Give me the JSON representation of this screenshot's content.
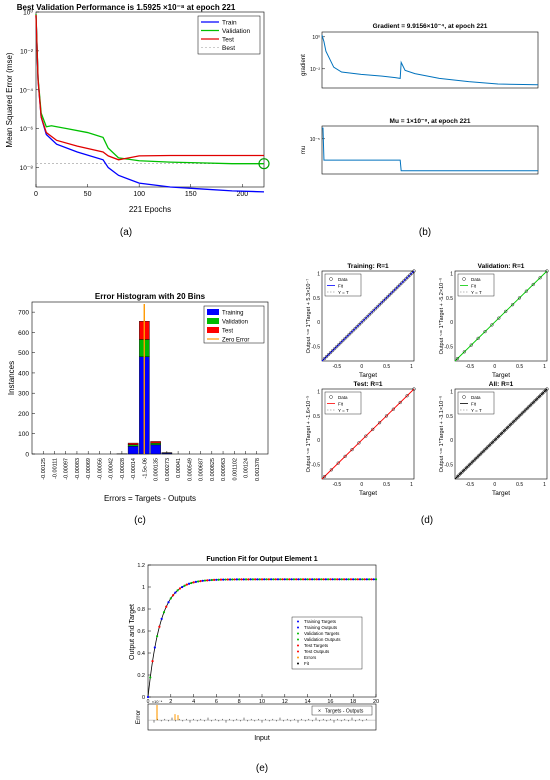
{
  "captions": {
    "a": "(a)",
    "b": "(b)",
    "c": "(c)",
    "d": "(d)",
    "e": "(e)"
  },
  "chart_data": [
    {
      "id": "a",
      "type": "line",
      "title": "Best Validation Performance is 1.5925 ×10⁻⁸ at epoch 221",
      "xlabel": "221 Epochs",
      "ylabel": "Mean Squared Error  (mse)",
      "xlim": [
        0,
        221
      ],
      "ylim_exp": [
        -9,
        0
      ],
      "y_scale": "log",
      "xticks": [
        0,
        50,
        100,
        150,
        200
      ],
      "ytick_labels": [
        "10⁰",
        "10⁻²",
        "10⁻⁴",
        "10⁻⁶",
        "10⁻⁸"
      ],
      "ytick_exps": [
        0,
        -2,
        -4,
        -6,
        -8
      ],
      "legend": [
        "Train",
        "Validation",
        "Test",
        "Best"
      ],
      "colors": {
        "Train": "#0000ff",
        "Validation": "#00c000",
        "Test": "#e00000",
        "Best": "#777777"
      },
      "series": [
        {
          "name": "Train",
          "x": [
            0,
            2,
            5,
            10,
            20,
            40,
            65,
            70,
            80,
            100,
            130,
            160,
            190,
            221
          ],
          "log10y": [
            -0.2,
            -3.5,
            -5.4,
            -6.3,
            -6.8,
            -7.2,
            -7.6,
            -8.0,
            -8.4,
            -8.8,
            -9.0,
            -9.1,
            -9.2,
            -9.25
          ]
        },
        {
          "name": "Validation",
          "x": [
            0,
            2,
            5,
            10,
            15,
            30,
            50,
            65,
            70,
            80,
            100,
            130,
            160,
            190,
            221
          ],
          "log10y": [
            -0.1,
            -3.4,
            -5.2,
            -5.9,
            -5.85,
            -6.0,
            -6.2,
            -6.45,
            -7.0,
            -7.5,
            -7.65,
            -7.72,
            -7.76,
            -7.8,
            -7.8
          ]
        },
        {
          "name": "Test",
          "x": [
            0,
            2,
            5,
            10,
            20,
            40,
            65,
            70,
            80,
            90,
            100,
            130,
            160,
            190,
            221
          ],
          "log10y": [
            -0.15,
            -3.5,
            -5.4,
            -6.2,
            -6.6,
            -6.9,
            -7.2,
            -7.4,
            -7.6,
            -7.5,
            -7.4,
            -7.38,
            -7.38,
            -7.38,
            -7.38
          ]
        }
      ],
      "best": {
        "epoch": 221,
        "log10y": -7.8
      }
    },
    {
      "id": "b1",
      "type": "line",
      "title": "Gradient = 9.9156×10⁻⁴, at epoch 221",
      "ylabel": "gradient",
      "y_scale": "log",
      "ytick_labels": [
        "10⁰",
        "10⁻²"
      ],
      "ytick_exps": [
        0,
        -2
      ],
      "xlim": [
        0,
        221
      ],
      "ylim_exp": [
        -3.2,
        0.3
      ],
      "x": [
        0,
        2,
        4,
        8,
        12,
        20,
        40,
        60,
        75,
        80,
        81,
        85,
        95,
        120,
        150,
        180,
        221
      ],
      "log10y": [
        0.1,
        -0.3,
        -0.9,
        -1.4,
        -1.9,
        -2.2,
        -2.35,
        -2.45,
        -2.55,
        -2.6,
        -1.6,
        -2.1,
        -2.3,
        -2.6,
        -2.8,
        -2.95,
        -3.0
      ],
      "color": "#0072bd"
    },
    {
      "id": "b2",
      "type": "line",
      "title": "Mu = 1×10⁻⁸, at epoch 221",
      "ylabel": "mu",
      "y_scale": "log",
      "ytick_labels": [
        "10⁻⁵"
      ],
      "ytick_exps": [
        -5
      ],
      "xlim": [
        0,
        221
      ],
      "ylim_exp": [
        -8.3,
        -3.8
      ],
      "x": [
        0,
        1,
        2,
        80,
        81,
        221
      ],
      "log10y": [
        -4,
        -4,
        -7,
        -7,
        -8,
        -8
      ],
      "color": "#0072bd"
    },
    {
      "id": "c",
      "type": "bar",
      "title": "Error Histogram with 20 Bins",
      "xlabel": "Errors = Targets - Outputs",
      "ylabel": "Instances",
      "ylim": [
        0,
        750
      ],
      "yticks": [
        0,
        100,
        200,
        300,
        400,
        500,
        600,
        700
      ],
      "categories": [
        "-0.00125",
        "-0.00111",
        "-0.00097",
        "-0.00083",
        "-0.00069",
        "-0.00056",
        "-0.00042",
        "-0.00028",
        "-0.00014",
        "-1.5e-06",
        "0.000135",
        "0.000273",
        "0.00041",
        "0.000549",
        "0.000687",
        "0.000825",
        "0.000963",
        "0.001102",
        "0.00124",
        "0.001378"
      ],
      "series": [
        {
          "name": "Training",
          "color": "#0000ff",
          "values": [
            0,
            0,
            0,
            0,
            0,
            0,
            0,
            1,
            38,
            480,
            45,
            4,
            0,
            0,
            0,
            0,
            0,
            0,
            0,
            0
          ]
        },
        {
          "name": "Validation",
          "color": "#00bb00",
          "values": [
            0,
            0,
            0,
            0,
            0,
            0,
            0,
            0,
            8,
            85,
            9,
            2,
            0,
            0,
            0,
            0,
            0,
            0,
            0,
            0
          ]
        },
        {
          "name": "Test",
          "color": "#ff0000",
          "values": [
            0,
            0,
            0,
            0,
            0,
            0,
            0,
            0,
            8,
            90,
            8,
            1,
            0,
            0,
            0,
            0,
            0,
            0,
            0,
            0
          ]
        }
      ],
      "zero_error_label": "Zero Error",
      "zero_error_color": "#ff9900"
    },
    {
      "id": "d",
      "type": "scatter",
      "panels": [
        {
          "title": "Training: R=1",
          "ylabel": "Output ~= 1*Target + 5.3×10⁻⁷",
          "xlabel": "Target",
          "fit_color": "#0000ff"
        },
        {
          "title": "Validation: R=1",
          "ylabel": "Output ~= 1*Target + -5.2×10⁻⁶",
          "xlabel": "Target",
          "fit_color": "#00cc00"
        },
        {
          "title": "Test: R=1",
          "ylabel": "Output ~= 1*Target + -1.6×10⁻⁵",
          "xlabel": "Target",
          "fit_color": "#ff0000"
        },
        {
          "title": "All: R=1",
          "ylabel": "Output ~= 1*Target + -3.1×10⁻⁶",
          "xlabel": "Target",
          "fit_color": "#000000"
        }
      ],
      "legend": [
        "Data",
        "Fit",
        "Y = T"
      ],
      "xlim": [
        -0.8,
        1.05
      ],
      "ylim": [
        -0.8,
        1.05
      ],
      "ticks": [
        -0.5,
        0,
        0.5,
        1
      ],
      "tick_labels": [
        "-0.5",
        "0",
        "0.5",
        "1"
      ]
    },
    {
      "id": "e",
      "type": "line",
      "title": "Function Fit for Output Element 1",
      "ylabel": "Output and Target",
      "xlabel": "Input",
      "error_ylabel": "Error",
      "xlim": [
        0,
        20
      ],
      "ylim": [
        0,
        1.2
      ],
      "yticks": [
        0,
        0.2,
        0.4,
        0.6,
        0.8,
        1,
        1.2
      ],
      "ytick_labels": [
        "0",
        "0.2",
        "0.4",
        "0.6",
        "0.8",
        "1",
        "1.2"
      ],
      "xticks": [
        2,
        4,
        6,
        8,
        10,
        12,
        14,
        16,
        18,
        20
      ],
      "x_first_label": "0",
      "x_first_exp": "×10⁻⁴",
      "asymptote": 1.07,
      "legend": [
        "Training Targets",
        "Training Outputs",
        "Validation Targets",
        "Validation Outputs",
        "Test Targets",
        "Test Outputs",
        "Errors",
        "Fit"
      ],
      "legend_colors": [
        "#0000ff",
        "#0000ff",
        "#00bb00",
        "#00bb00",
        "#ff0000",
        "#ff0000",
        "#ff9900",
        "#000000"
      ],
      "error_legend": "Targets - Outputs"
    }
  ]
}
